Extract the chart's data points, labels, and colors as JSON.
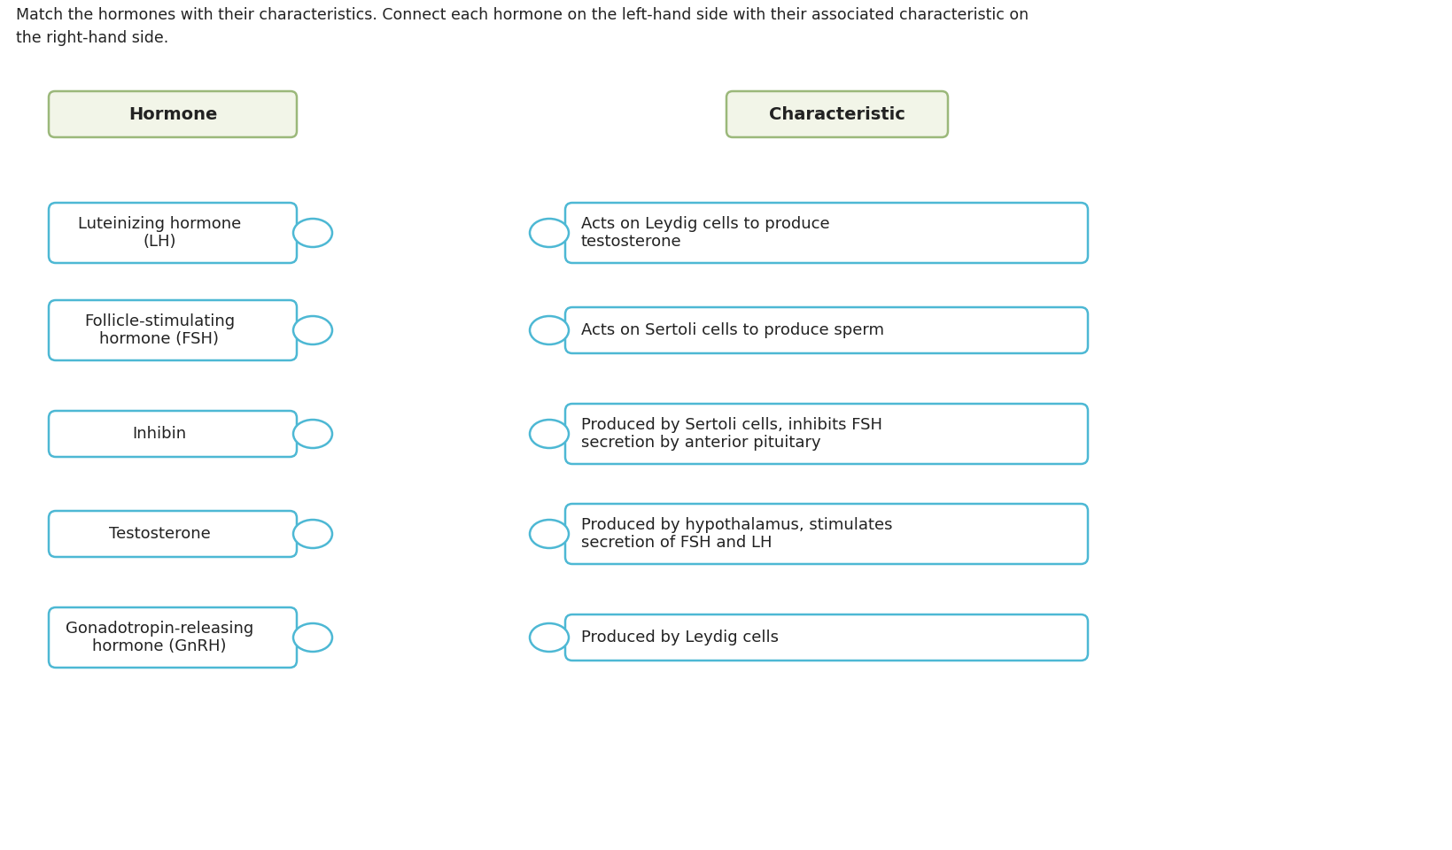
{
  "title_text": "Match the hormones with their characteristics. Connect each hormone on the left-hand side with their associated characteristic on\nthe right-hand side.",
  "header_hormone": "Hormone",
  "header_characteristic": "Characteristic",
  "hormones": [
    "Luteinizing hormone\n(LH)",
    "Follicle-stimulating\nhormone (FSH)",
    "Inhibin",
    "Testosterone",
    "Gonadotropin-releasing\nhormone (GnRH)"
  ],
  "characteristics": [
    "Acts on Leydig cells to produce\ntestosterone",
    "Acts on Sertoli cells to produce sperm",
    "Produced by Sertoli cells, inhibits FSH\nsecretion by anterior pituitary",
    "Produced by hypothalamus, stimulates\nsecretion of FSH and LH",
    "Produced by Leydig cells"
  ],
  "bg_color": "#ffffff",
  "header_box_color": "#f2f5e8",
  "header_border_color": "#9bb87a",
  "item_box_color": "#ffffff",
  "item_border_color": "#4db8d4",
  "circle_color": "#4db8d4",
  "text_color": "#222222",
  "title_fontsize": 12.5,
  "header_fontsize": 14,
  "item_fontsize": 13
}
